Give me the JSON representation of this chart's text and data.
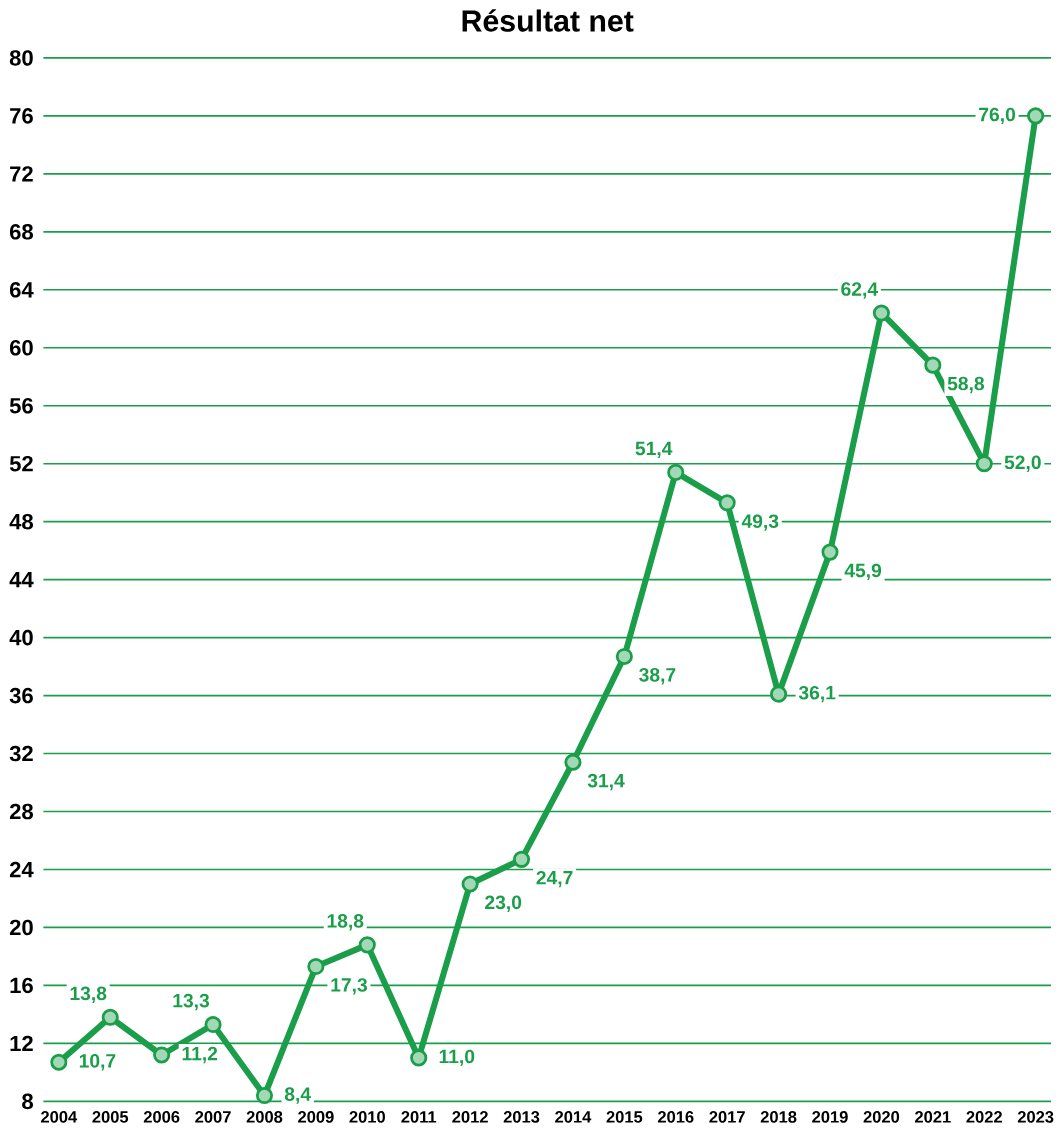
{
  "chart_data": {
    "type": "line",
    "title": "Résultat net",
    "categories": [
      "2004",
      "2005",
      "2006",
      "2007",
      "2008",
      "2009",
      "2010",
      "2011",
      "2012",
      "2013",
      "2014",
      "2015",
      "2016",
      "2017",
      "2018",
      "2019",
      "2020",
      "2021",
      "2022",
      "2023"
    ],
    "series": [
      {
        "color": "#1a9e4a",
        "values": [
          10.7,
          13.8,
          11.2,
          13.3,
          8.4,
          17.3,
          18.8,
          11.0,
          23.0,
          24.7,
          31.4,
          38.7,
          51.4,
          49.3,
          36.1,
          45.9,
          62.4,
          58.8,
          52.0,
          76.0
        ],
        "value_labels": [
          "10,7",
          "13,8",
          "11,2",
          "13,3",
          "8,4",
          "17,3",
          "18,8",
          "11,0",
          "23,0",
          "24,7",
          "31,4",
          "38,7",
          "51,4",
          "49,3",
          "36,1",
          "45,9",
          "62,4",
          "58,8",
          "52,0",
          "76,0"
        ]
      }
    ],
    "ylim": [
      8,
      80
    ],
    "yticks": [
      8,
      12,
      16,
      20,
      24,
      28,
      32,
      36,
      40,
      44,
      48,
      52,
      56,
      60,
      64,
      68,
      72,
      76,
      80
    ],
    "grid": "y",
    "marker": "circle",
    "line_style": "solid"
  }
}
